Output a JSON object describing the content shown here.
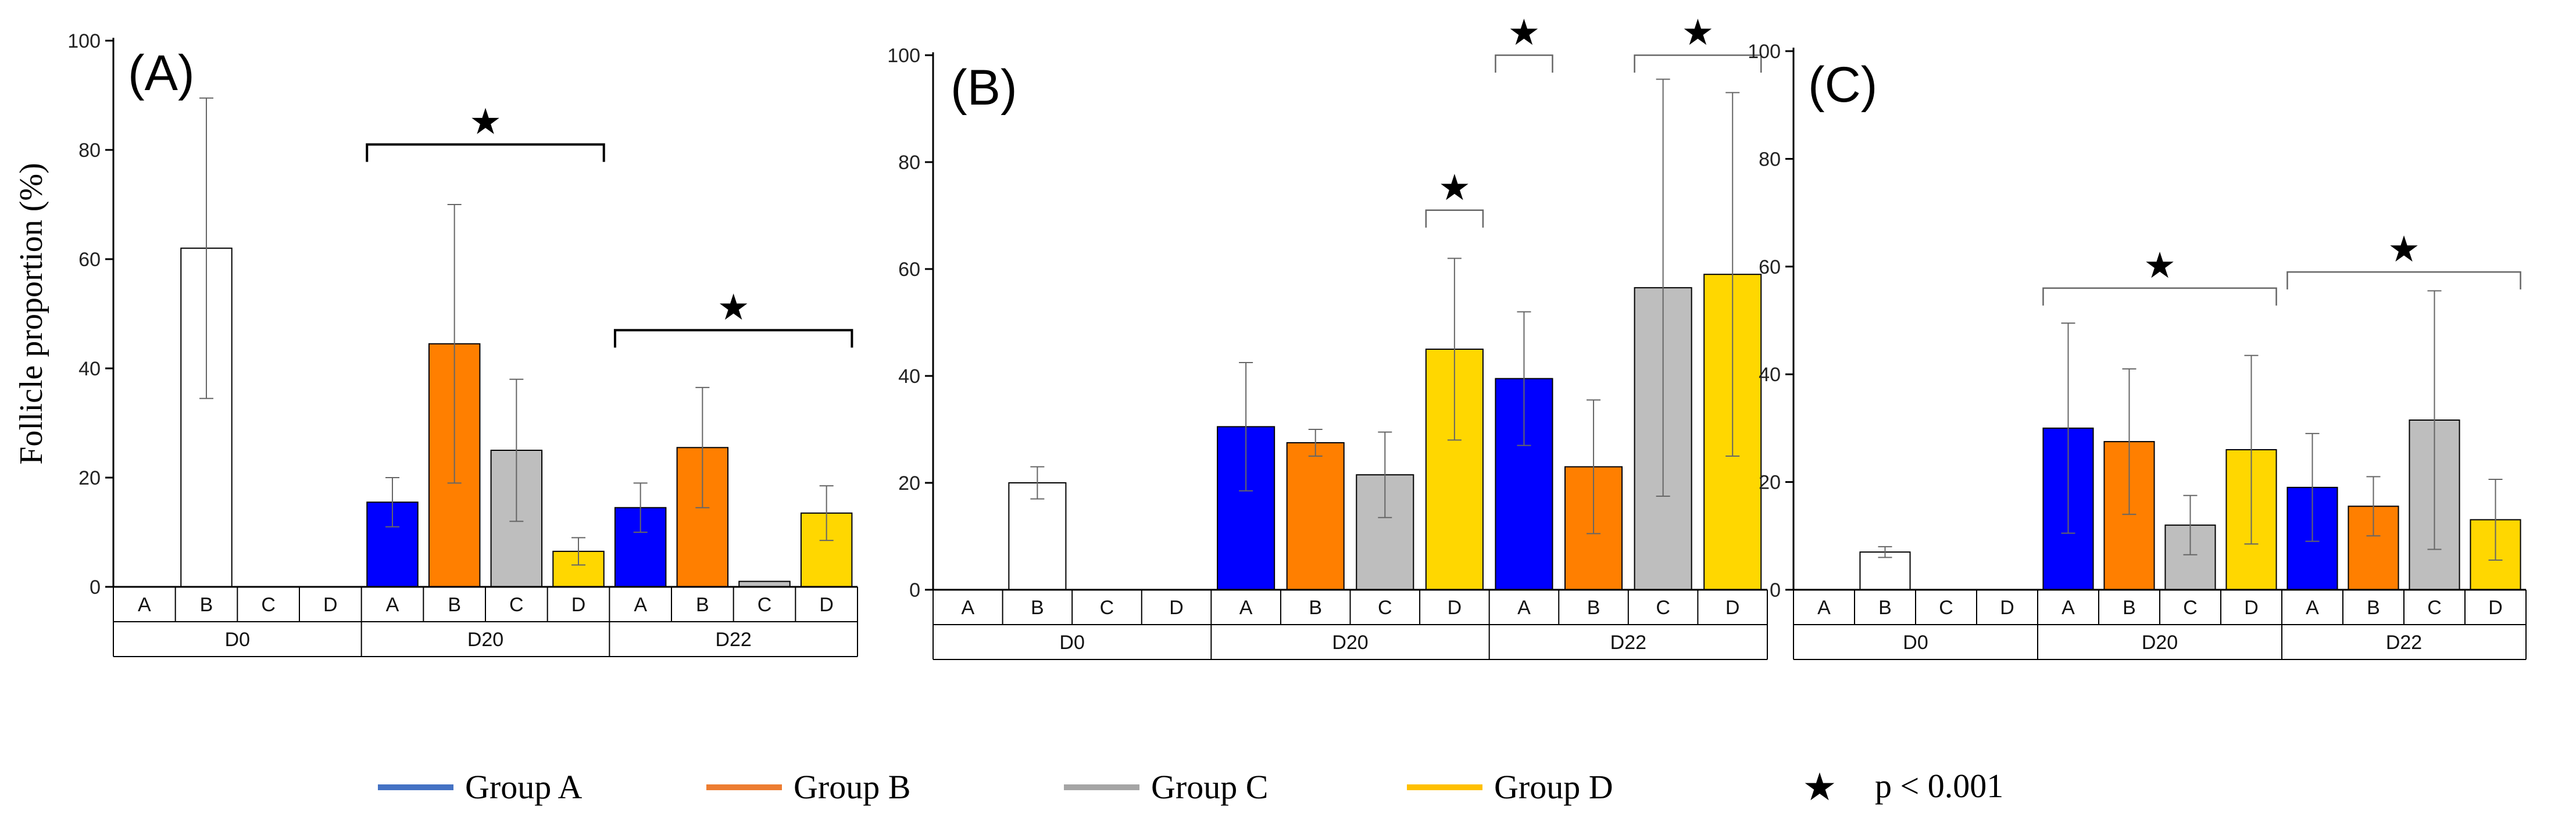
{
  "chart_data": [
    {
      "type": "bar",
      "panel_label": "(A)",
      "ylabel": "Follicle proportion (%)",
      "ylim": [
        0,
        100
      ],
      "yticks": [
        0,
        20,
        40,
        60,
        80,
        100
      ],
      "grid": false,
      "groups": [
        "D0",
        "D20",
        "D22"
      ],
      "categories": [
        "A",
        "B",
        "C",
        "D"
      ],
      "bars": [
        {
          "day": "D0",
          "group": "B",
          "value": 62,
          "error": 27.5,
          "color": "#FFFFFF"
        },
        {
          "day": "D20",
          "group": "A",
          "value": 15.5,
          "error": 4.5,
          "color": "#0000FF"
        },
        {
          "day": "D20",
          "group": "B",
          "value": 44.5,
          "error": 25.5,
          "color": "#FF7F00"
        },
        {
          "day": "D20",
          "group": "C",
          "value": 25,
          "error": 13,
          "color": "#BEBEBE"
        },
        {
          "day": "D20",
          "group": "D",
          "value": 6.5,
          "error": 2.5,
          "color": "#FFD700"
        },
        {
          "day": "D22",
          "group": "A",
          "value": 14.5,
          "error": 4.5,
          "color": "#0000FF"
        },
        {
          "day": "D22",
          "group": "B",
          "value": 25.5,
          "error": 11,
          "color": "#FF7F00"
        },
        {
          "day": "D22",
          "group": "C",
          "value": 1,
          "error": 0,
          "color": "#BEBEBE"
        },
        {
          "day": "D22",
          "group": "D",
          "value": 13.5,
          "error": 5,
          "color": "#FFD700"
        }
      ],
      "significance": [
        {
          "from": "D20 A",
          "to": "D20 D",
          "level": 81,
          "symbol": "★"
        },
        {
          "from": "D22 A",
          "to": "D22 D",
          "level": 47,
          "symbol": "★"
        }
      ]
    },
    {
      "type": "bar",
      "panel_label": "(B)",
      "ylim": [
        0,
        100
      ],
      "yticks": [
        0,
        20,
        40,
        60,
        80,
        100
      ],
      "grid": false,
      "groups": [
        "D0",
        "D20",
        "D22"
      ],
      "categories": [
        "A",
        "B",
        "C",
        "D"
      ],
      "bars": [
        {
          "day": "D0",
          "group": "B",
          "value": 20,
          "error": 3,
          "color": "#FFFFFF"
        },
        {
          "day": "D20",
          "group": "A",
          "value": 30.5,
          "error": 12,
          "color": "#0000FF"
        },
        {
          "day": "D20",
          "group": "B",
          "value": 27.5,
          "error": 2.5,
          "color": "#FF7F00"
        },
        {
          "day": "D20",
          "group": "C",
          "value": 21.5,
          "error": 8,
          "color": "#BEBEBE"
        },
        {
          "day": "D20",
          "group": "D",
          "value": 45,
          "error": 17,
          "color": "#FFD700"
        },
        {
          "day": "D22",
          "group": "A",
          "value": 39.5,
          "error": 12.5,
          "color": "#0000FF"
        },
        {
          "day": "D22",
          "group": "B",
          "value": 23,
          "error": 12.5,
          "color": "#FF7F00"
        },
        {
          "day": "D22",
          "group": "C",
          "value": 56.5,
          "error": 39,
          "color": "#BEBEBE"
        },
        {
          "day": "D22",
          "group": "D",
          "value": 59,
          "error": 34,
          "color": "#FFD700"
        }
      ],
      "significance": [
        {
          "from": "D20 D",
          "to": "D20 D",
          "level": 71,
          "symbol": "★"
        },
        {
          "from": "D22 A",
          "to": "D22 A",
          "level": 100,
          "symbol": "★"
        },
        {
          "from": "D22 C",
          "to": "D22 D",
          "level": 100,
          "symbol": "★"
        }
      ]
    },
    {
      "type": "bar",
      "panel_label": "(C)",
      "ylim": [
        0,
        100
      ],
      "yticks": [
        0,
        20,
        40,
        60,
        80,
        100
      ],
      "grid": false,
      "groups": [
        "D0",
        "D20",
        "D22"
      ],
      "categories": [
        "A",
        "B",
        "C",
        "D"
      ],
      "bars": [
        {
          "day": "D0",
          "group": "B",
          "value": 7,
          "error": 1,
          "color": "#FFFFFF"
        },
        {
          "day": "D20",
          "group": "A",
          "value": 30,
          "error": 19.5,
          "color": "#0000FF"
        },
        {
          "day": "D20",
          "group": "B",
          "value": 27.5,
          "error": 13.5,
          "color": "#FF7F00"
        },
        {
          "day": "D20",
          "group": "C",
          "value": 12,
          "error": 5.5,
          "color": "#BEBEBE"
        },
        {
          "day": "D20",
          "group": "D",
          "value": 26,
          "error": 17.5,
          "color": "#FFD700"
        },
        {
          "day": "D22",
          "group": "A",
          "value": 19,
          "error": 10,
          "color": "#0000FF"
        },
        {
          "day": "D22",
          "group": "B",
          "value": 15.5,
          "error": 5.5,
          "color": "#FF7F00"
        },
        {
          "day": "D22",
          "group": "C",
          "value": 31.5,
          "error": 24,
          "color": "#BEBEBE"
        },
        {
          "day": "D22",
          "group": "D",
          "value": 13,
          "error": 7.5,
          "color": "#FFD700"
        }
      ],
      "significance": [
        {
          "from": "D20 A",
          "to": "D20 D",
          "level": 56,
          "symbol": "★"
        },
        {
          "from": "D22 A",
          "to": "D22 D",
          "level": 59,
          "symbol": "★"
        }
      ]
    }
  ],
  "legend": {
    "entries": [
      {
        "label": "Group A",
        "color": "#4472C4"
      },
      {
        "label": "Group B",
        "color": "#ED7D31"
      },
      {
        "label": "Group C",
        "color": "#A5A5A5"
      },
      {
        "label": "Group D",
        "color": "#FFC000"
      }
    ],
    "significance_symbol": "★",
    "significance_label": "p < 0.001"
  }
}
